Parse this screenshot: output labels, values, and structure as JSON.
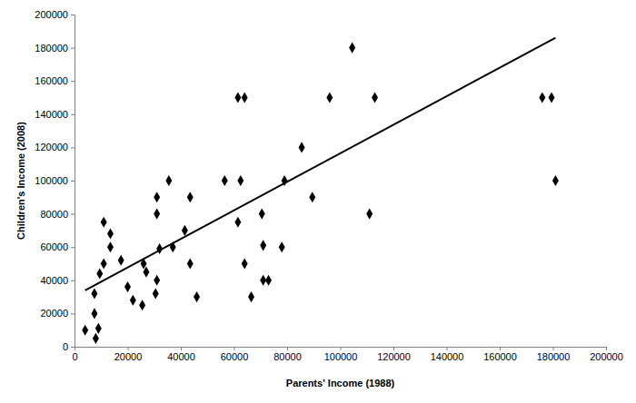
{
  "chart_data": {
    "type": "scatter",
    "x_label": "Parents' Income (1988)",
    "y_label": "Children's Income (2008)",
    "xlim": [
      0,
      200000
    ],
    "ylim": [
      0,
      200000
    ],
    "xticks": [
      0,
      20000,
      40000,
      60000,
      80000,
      100000,
      120000,
      140000,
      160000,
      180000,
      200000
    ],
    "yticks": [
      0,
      20000,
      40000,
      60000,
      80000,
      100000,
      120000,
      140000,
      160000,
      180000,
      200000
    ],
    "grid": false,
    "series": [
      {
        "type": "scatter",
        "marker": "diamond",
        "color": "#000000",
        "x": [
          4000,
          7500,
          7500,
          8000,
          9000,
          9500,
          11000,
          11000,
          13500,
          13500,
          17500,
          20000,
          22000,
          25500,
          26000,
          27000,
          30500,
          31000,
          31000,
          31000,
          32000,
          35500,
          37000,
          41500,
          43500,
          43500,
          46000,
          56500,
          61500,
          61500,
          62500,
          64000,
          64000,
          66500,
          70500,
          71000,
          71000,
          73000,
          78000,
          79000,
          85500,
          89500,
          96000,
          104500,
          111000,
          113000,
          176000,
          179500,
          181000
        ],
        "values": [
          10000,
          20000,
          32000,
          5000,
          11000,
          44000,
          75000,
          50000,
          60000,
          68000,
          52000,
          36000,
          28000,
          25000,
          50000,
          45000,
          32000,
          40000,
          80000,
          90000,
          59000,
          100000,
          60000,
          70000,
          90000,
          50000,
          30000,
          100000,
          75000,
          150000,
          100000,
          150000,
          50000,
          30000,
          80000,
          61000,
          40000,
          40000,
          60000,
          100000,
          120000,
          90000,
          150000,
          180000,
          80000,
          150000,
          150000,
          150000,
          100000
        ]
      },
      {
        "type": "line",
        "line_style": "solid",
        "color": "#000000",
        "x": [
          4000,
          181000
        ],
        "values": [
          34000,
          186000
        ]
      }
    ]
  }
}
